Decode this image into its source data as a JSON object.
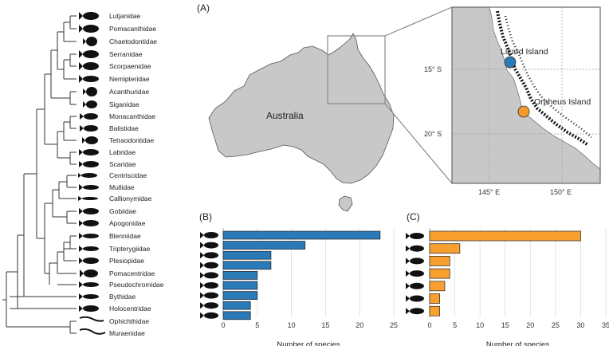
{
  "panels": {
    "a": "(A)",
    "b": "(B)",
    "c": "(C)"
  },
  "families": [
    "Lutjanidae",
    "Pomacanthidae",
    "Chaetodontidae",
    "Serranidae",
    "Scorpaenidae",
    "Nemipteridae",
    "Acanthuridae",
    "Siganidae",
    "Monacanthidae",
    "Balistidae",
    "Tetraodontidae",
    "Labridae",
    "Scaridae",
    "Centriscidae",
    "Mullidae",
    "Callionymidae",
    "Gobiidae",
    "Apogonidae",
    "Blenniidae",
    "Tripterygiidae",
    "Plesiopidae",
    "Pomacentridae",
    "Pseudochromidae",
    "Bythidae",
    "Holocentridae",
    "Ophichthidae",
    "Muraenidae"
  ],
  "map": {
    "country_label": "Australia",
    "sites": [
      {
        "name": "Lizard Island",
        "color": "#2a7ab8"
      },
      {
        "name": "Orpheus Island",
        "color": "#f39a2b"
      }
    ],
    "lat_labels": [
      "15° S",
      "20° S"
    ],
    "lon_labels": [
      "145° E",
      "150° E"
    ],
    "land_color": "#c8c8c8",
    "reef_color": "#111111"
  },
  "chart_data": [
    {
      "type": "bar",
      "panel": "(B)",
      "orientation": "horizontal",
      "values": [
        23,
        12,
        7,
        7,
        5,
        5,
        5,
        4,
        4
      ],
      "xlabel": "Number of species",
      "xticks": [
        0,
        5,
        10,
        15,
        20,
        25
      ],
      "xlim": [
        0,
        25
      ],
      "color": "#2a7ab8",
      "grid": "vertical"
    },
    {
      "type": "bar",
      "panel": "(C)",
      "orientation": "horizontal",
      "values": [
        30,
        6,
        4,
        4,
        3,
        2,
        2
      ],
      "xlabel": "Number of species",
      "xticks": [
        0,
        5,
        10,
        15,
        20,
        25,
        30,
        35
      ],
      "xlim": [
        0,
        35
      ],
      "color": "#f7a030",
      "grid": "vertical"
    }
  ]
}
